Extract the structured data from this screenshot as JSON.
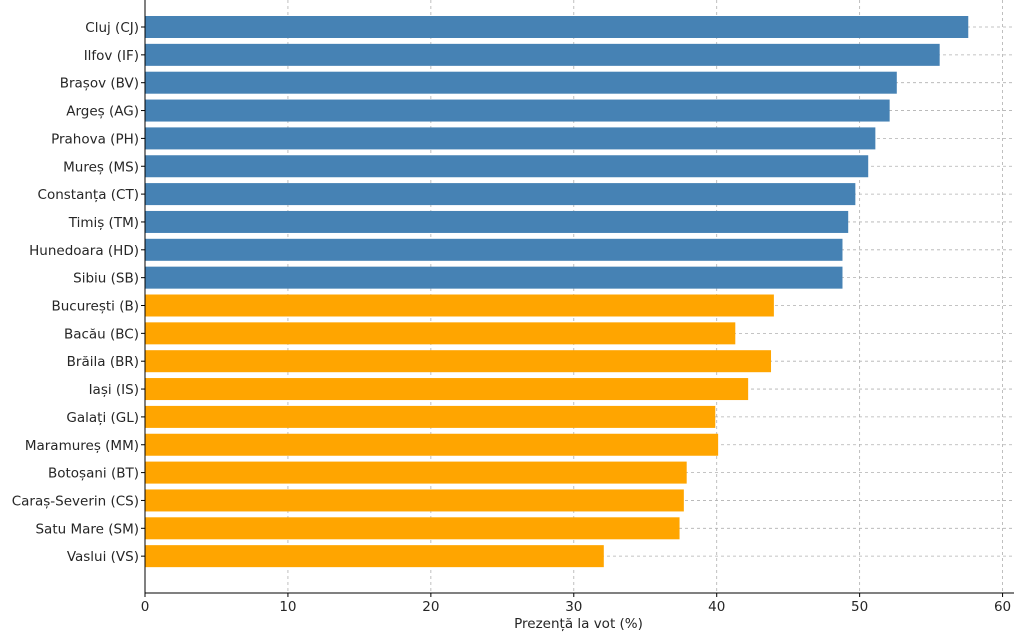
{
  "chart_data": {
    "type": "bar",
    "orientation": "horizontal",
    "xlabel": "Prezență la vot (%)",
    "ylabel": "",
    "xlim": [
      0,
      60.8
    ],
    "xticks": [
      0,
      10,
      20,
      30,
      40,
      50,
      60
    ],
    "grid": true,
    "colors": {
      "top_group": "#4682B4",
      "bottom_group": "#FFA500"
    },
    "categories": [
      "Cluj (CJ)",
      "Ilfov (IF)",
      "Brașov (BV)",
      "Argeș (AG)",
      "Prahova (PH)",
      "Mureș (MS)",
      "Constanța (CT)",
      "Timiș (TM)",
      "Hunedoara (HD)",
      "Sibiu (SB)",
      "București (B)",
      "Bacău (BC)",
      "Brăila (BR)",
      "Iași (IS)",
      "Galați (GL)",
      "Maramureș (MM)",
      "Botoșani (BT)",
      "Caraș-Severin (CS)",
      "Satu Mare (SM)",
      "Vaslui (VS)"
    ],
    "values": [
      57.6,
      55.6,
      52.6,
      52.1,
      51.1,
      50.6,
      49.7,
      49.2,
      48.8,
      48.8,
      44.0,
      41.3,
      43.8,
      42.2,
      39.9,
      40.1,
      37.9,
      37.7,
      37.4,
      32.1
    ],
    "groups": [
      "top_group",
      "top_group",
      "top_group",
      "top_group",
      "top_group",
      "top_group",
      "top_group",
      "top_group",
      "top_group",
      "top_group",
      "bottom_group",
      "bottom_group",
      "bottom_group",
      "bottom_group",
      "bottom_group",
      "bottom_group",
      "bottom_group",
      "bottom_group",
      "bottom_group",
      "bottom_group"
    ]
  }
}
